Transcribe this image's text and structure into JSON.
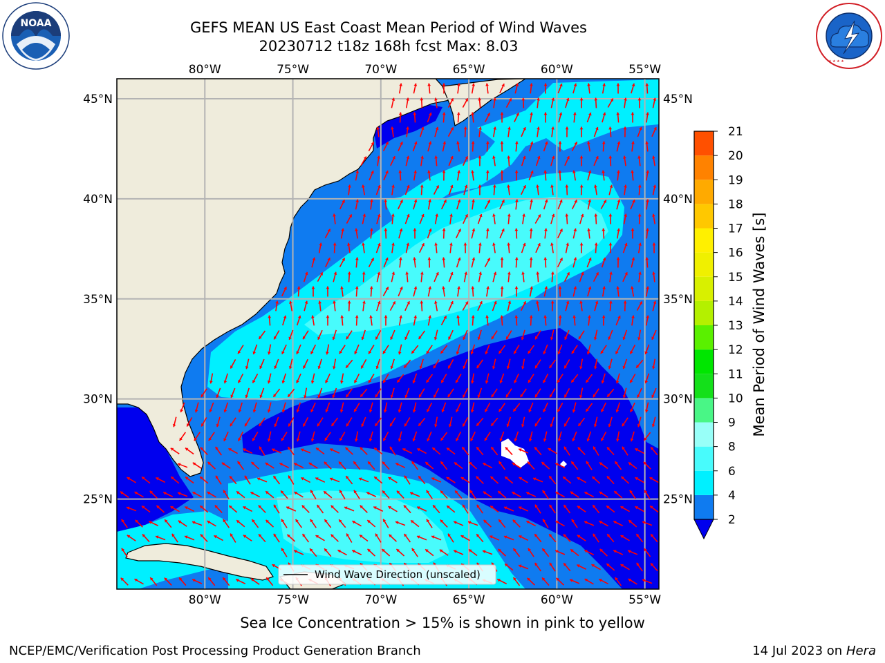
{
  "header": {
    "title_line1": "GEFS MEAN US East Coast Mean Period of Wind Waves",
    "title_line2": "20230712 t18z 168h fcst   Max: 8.03"
  },
  "logos": {
    "left": {
      "icon": "noaa-logo-icon",
      "text": "NOAA"
    },
    "right": {
      "icon": "nws-logo-icon",
      "ring_text": "NATIONAL WEATHER SERVICE"
    }
  },
  "map": {
    "lon_labels": [
      "80°W",
      "75°W",
      "70°W",
      "65°W",
      "60°W",
      "55°W"
    ],
    "lat_labels": [
      "45°N",
      "40°N",
      "35°N",
      "30°N",
      "25°N"
    ],
    "lon_values": [
      -80,
      -75,
      -70,
      -65,
      -60,
      -55
    ],
    "lat_values": [
      45,
      40,
      35,
      30,
      25
    ],
    "extent": {
      "lon_min": -85,
      "lon_max": -54.2,
      "lat_min": 20.5,
      "lat_max": 46
    },
    "legend_label": "Wind Wave Direction (unscaled)",
    "colors": {
      "land": "#efecdc",
      "level_2_4": "#0f7bf0",
      "level_4_6": "#00f0ff",
      "level_6_8": "#48fbfc",
      "below_2": "#0000ee",
      "arrow": "#ff0000",
      "grid": "#b3b3b3"
    }
  },
  "colorbar": {
    "label": "Mean Period of Wind Waves [s]",
    "ticks": [
      "2",
      "4",
      "6",
      "8",
      "9",
      "10",
      "11",
      "12",
      "13",
      "14",
      "15",
      "16",
      "17",
      "18",
      "19",
      "20",
      "21"
    ],
    "colors": [
      "#0f7bf0",
      "#00f0ff",
      "#48fbfc",
      "#98fff8",
      "#49f686",
      "#14e01a",
      "#00e600",
      "#5af000",
      "#b4f000",
      "#d8f000",
      "#f0f000",
      "#fff000",
      "#ffc800",
      "#ffaa00",
      "#ff8200",
      "#ff5000",
      "#ff2800",
      "#ff0000"
    ],
    "extend_color": "#0000ee"
  },
  "footer": {
    "note": "Sea Ice Concentration > 15% is shown in pink to yellow",
    "left": "NCEP/EMC/Verification Post Processing Product Generation Branch",
    "date": "14 Jul 2023 on ",
    "host": "Hera"
  }
}
